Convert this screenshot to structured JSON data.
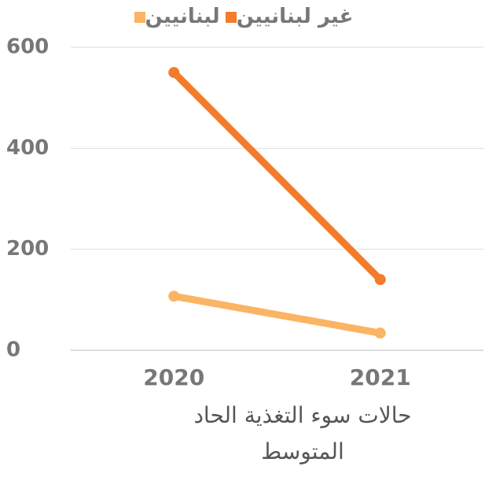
{
  "chart_data": {
    "type": "line",
    "x_label": "حالات سوء التغذية الحاد المتوسط",
    "categories": [
      "2020",
      "2021"
    ],
    "series": [
      {
        "name": "غير لبنانيين",
        "color": "#f47b2a",
        "values": [
          550,
          140
        ]
      },
      {
        "name": "لبنانيين",
        "color": "#fbb463",
        "values": [
          107,
          34
        ]
      }
    ],
    "ylim": [
      0,
      600
    ],
    "yticks": [
      0,
      200,
      400,
      600
    ],
    "grid": true,
    "legend": "top"
  }
}
